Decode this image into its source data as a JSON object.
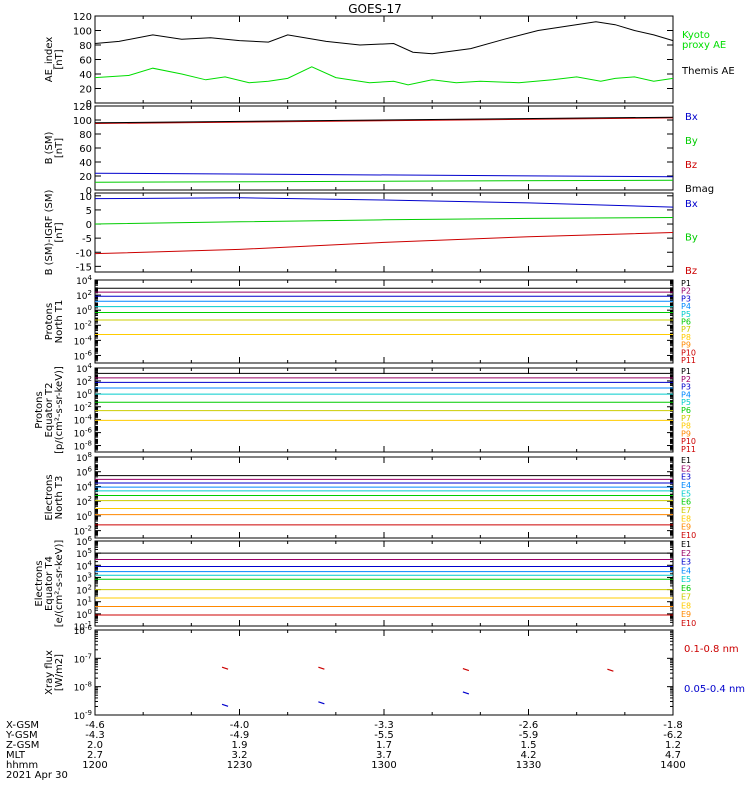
{
  "title": "GOES-17",
  "chart_data": [
    {
      "type": "line",
      "ylabel": [
        "AE_index",
        "[nT]"
      ],
      "ylim": [
        0,
        120
      ],
      "yticks": [
        0,
        20,
        40,
        60,
        80,
        100,
        120
      ],
      "series": [
        {
          "name": "Kyoto proxy AE",
          "label_lines": [
            "Kyoto",
            "proxy AE"
          ],
          "color": "#00dd00",
          "x": [
            0,
            7,
            12,
            18,
            23,
            27,
            32,
            36,
            40,
            45,
            50,
            57,
            62,
            65,
            70,
            75,
            80,
            88,
            95,
            100,
            105,
            108,
            112,
            116,
            120
          ],
          "values": [
            35,
            38,
            48,
            40,
            32,
            36,
            28,
            30,
            34,
            50,
            35,
            28,
            30,
            25,
            32,
            28,
            30,
            28,
            32,
            36,
            30,
            34,
            36,
            30,
            34
          ]
        },
        {
          "name": "Themis AE",
          "label_lines": [
            "Themis AE"
          ],
          "color": "#000000",
          "x": [
            0,
            5,
            12,
            18,
            24,
            30,
            36,
            40,
            48,
            55,
            62,
            66,
            70,
            78,
            85,
            92,
            98,
            104,
            108,
            112,
            116,
            120
          ],
          "values": [
            82,
            85,
            94,
            88,
            90,
            86,
            84,
            94,
            85,
            80,
            82,
            70,
            68,
            75,
            88,
            100,
            106,
            112,
            108,
            100,
            94,
            86
          ]
        }
      ]
    },
    {
      "type": "line",
      "ylabel": [
        "B (SM)",
        "[nT]"
      ],
      "ylim": [
        0,
        120
      ],
      "yticks": [
        0,
        20,
        40,
        60,
        80,
        100,
        120
      ],
      "series": [
        {
          "name": "Bx",
          "color": "#0000cc",
          "x": [
            0,
            120
          ],
          "values": [
            24,
            19
          ]
        },
        {
          "name": "By",
          "color": "#00cc00",
          "x": [
            0,
            120
          ],
          "values": [
            11,
            14
          ]
        },
        {
          "name": "Bz",
          "color": "#cc0000",
          "x": [
            0,
            120
          ],
          "values": [
            95,
            103
          ]
        },
        {
          "name": "Bmag",
          "color": "#000000",
          "x": [
            0,
            120
          ],
          "values": [
            96,
            104
          ]
        }
      ]
    },
    {
      "type": "line",
      "ylabel": [
        "B (SM)-IGRF (SM)",
        "[nT]"
      ],
      "ylim": [
        -17,
        11
      ],
      "yticks": [
        -15,
        -10,
        -5,
        0,
        5,
        10
      ],
      "series": [
        {
          "name": "Bx",
          "color": "#0000cc",
          "x": [
            0,
            30,
            60,
            90,
            120
          ],
          "values": [
            9,
            9.3,
            8.5,
            7.5,
            6
          ]
        },
        {
          "name": "By",
          "color": "#00cc00",
          "x": [
            0,
            30,
            60,
            90,
            120
          ],
          "values": [
            0,
            0.8,
            1.5,
            2,
            2.3
          ]
        },
        {
          "name": "Bz",
          "color": "#cc0000",
          "x": [
            0,
            30,
            60,
            90,
            120
          ],
          "values": [
            -10.5,
            -9,
            -6.5,
            -4.5,
            -3
          ]
        }
      ]
    },
    {
      "type": "line",
      "log": true,
      "ylabel": [
        "Protons",
        "North T1"
      ],
      "ylim_exp": [
        -7,
        4
      ],
      "tick_exps": [
        -6,
        -4,
        -2,
        0,
        2,
        4
      ],
      "series": [
        {
          "name": "P1",
          "color": "#000000",
          "y": 800
        },
        {
          "name": "P2",
          "color": "#990066",
          "y": 250
        },
        {
          "name": "P3",
          "color": "#0000cc",
          "y": 70
        },
        {
          "name": "P4",
          "color": "#0088ff",
          "y": 15
        },
        {
          "name": "P5",
          "color": "#00cccc",
          "y": 3
        },
        {
          "name": "P6",
          "color": "#00cc00",
          "y": 0.5
        },
        {
          "name": "P7",
          "color": "#cccc00",
          "y": 0.05
        },
        {
          "name": "P8",
          "color": "#ffcc00",
          "y": 0.0006
        },
        {
          "name": "P9",
          "color": "#ff8800",
          "y": null
        },
        {
          "name": "P10",
          "color": "#cc0000",
          "y": null
        },
        {
          "name": "P11",
          "color": "#cc0000",
          "y": null
        }
      ]
    },
    {
      "type": "line",
      "log": true,
      "ylabel": [
        "Protons",
        "Equator T2",
        "[p/(cm²-s-sr-keV)]"
      ],
      "ylim_exp": [
        -9,
        4
      ],
      "tick_exps": [
        -8,
        -6,
        -4,
        -2,
        0,
        2,
        4
      ],
      "series": [
        {
          "name": "P1",
          "color": "#000000",
          "y": 1500
        },
        {
          "name": "P2",
          "color": "#990066",
          "y": 300
        },
        {
          "name": "P3",
          "color": "#0000cc",
          "y": 60
        },
        {
          "name": "P4",
          "color": "#0088ff",
          "y": 8
        },
        {
          "name": "P5",
          "color": "#00cccc",
          "y": 0.9
        },
        {
          "name": "P6",
          "color": "#00cc00",
          "y": 0.05
        },
        {
          "name": "P7",
          "color": "#cccc00",
          "y": 0.0025
        },
        {
          "name": "P8",
          "color": "#ffcc00",
          "y": 8e-05
        },
        {
          "name": "P9",
          "color": "#ff8800",
          "y": null
        },
        {
          "name": "P10",
          "color": "#cc0000",
          "y": null
        },
        {
          "name": "P11",
          "color": "#cc0000",
          "y": null
        }
      ]
    },
    {
      "type": "line",
      "log": true,
      "ylabel": [
        "Electrons",
        "North T3"
      ],
      "ylim_exp": [
        -3,
        8
      ],
      "tick_exps": [
        -2,
        0,
        2,
        4,
        6,
        8
      ],
      "series": [
        {
          "name": "E1",
          "color": "#000000",
          "y": 300000
        },
        {
          "name": "E2",
          "color": "#990066",
          "y": 90000
        },
        {
          "name": "E3",
          "color": "#0000cc",
          "y": 30000
        },
        {
          "name": "E4",
          "color": "#0088ff",
          "y": 8000
        },
        {
          "name": "E5",
          "color": "#00cccc",
          "y": 2500
        },
        {
          "name": "E6",
          "color": "#00cc00",
          "y": 600
        },
        {
          "name": "E7",
          "color": "#cccc00",
          "y": 120
        },
        {
          "name": "E8",
          "color": "#ffcc00",
          "y": 10
        },
        {
          "name": "E9",
          "color": "#ff8800",
          "y": 1.5
        },
        {
          "name": "E10",
          "color": "#cc0000",
          "y": 0.06
        }
      ]
    },
    {
      "type": "line",
      "log": true,
      "ylabel": [
        "Electrons",
        "Equator T4",
        "[e/(cm²-s-sr-keV)]"
      ],
      "ylim_exp": [
        -1,
        6
      ],
      "tick_exps": [
        -1,
        0,
        1,
        2,
        3,
        4,
        5,
        6
      ],
      "series": [
        {
          "name": "E1",
          "color": "#000000",
          "y": 100000
        },
        {
          "name": "E2",
          "color": "#990066",
          "y": 30000
        },
        {
          "name": "E3",
          "color": "#0000cc",
          "y": 8000
        },
        {
          "name": "E4",
          "color": "#0088ff",
          "y": 3000
        },
        {
          "name": "E5",
          "color": "#00cccc",
          "y": 1500
        },
        {
          "name": "E6",
          "color": "#00cc00",
          "y": 700
        },
        {
          "name": "E7",
          "color": "#cccc00",
          "y": 100
        },
        {
          "name": "E8",
          "color": "#ffcc00",
          "y": 20
        },
        {
          "name": "E9",
          "color": "#ff8800",
          "y": 4
        },
        {
          "name": "E10",
          "color": "#cc0000",
          "y": 0.8
        }
      ]
    },
    {
      "type": "scatter",
      "log": true,
      "ylabel": [
        "Xray flux",
        "[W/m2]"
      ],
      "ylim_exp": [
        -9,
        -6
      ],
      "tick_exps": [
        -9,
        -8,
        -7,
        -6
      ],
      "series": [
        {
          "name": "0.1-0.8 nm",
          "color": "#cc0000",
          "x": [
            27,
            47,
            77,
            107
          ],
          "values": [
            4.5e-08,
            4.5e-08,
            4e-08,
            3.8e-08
          ]
        },
        {
          "name": "0.05-0.4 nm",
          "color": "#0000cc",
          "x": [
            27,
            47,
            77
          ],
          "values": [
            2.2e-09,
            2.7e-09,
            6e-09
          ]
        }
      ]
    }
  ],
  "time_axis": {
    "row_labels": [
      "X-GSM",
      "Y-GSM",
      "Z-GSM",
      "MLT",
      "hhmm"
    ],
    "date": "2021 Apr 30",
    "columns": [
      [
        "-4.6",
        "-4.3",
        "2.0",
        "2.7",
        "1200"
      ],
      [
        "-4.0",
        "-4.9",
        "1.9",
        "3.2",
        "1230"
      ],
      [
        "-3.3",
        "-5.5",
        "1.7",
        "3.7",
        "1300"
      ],
      [
        "-2.6",
        "-5.9",
        "1.5",
        "4.2",
        "1330"
      ],
      [
        "-1.8",
        "-6.2",
        "1.2",
        "4.7",
        "1400"
      ]
    ]
  }
}
